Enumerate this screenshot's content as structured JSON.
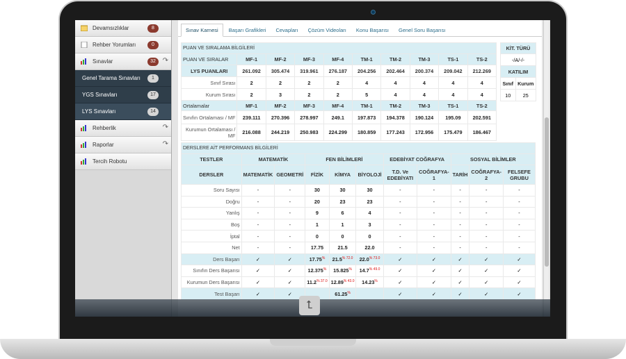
{
  "sidebar": {
    "items": [
      {
        "label": "Devamsızlıklar",
        "badge": "8"
      },
      {
        "label": "Rehber Yorumları",
        "badge": "0"
      },
      {
        "label": "Sınavlar",
        "badge": "32"
      }
    ],
    "subitems": [
      {
        "label": "Genel Tarama Sınavları",
        "badge": "1"
      },
      {
        "label": "YGS Sınavları",
        "badge": "17"
      },
      {
        "label": "LYS Sınavları",
        "badge": "14"
      }
    ],
    "links": [
      {
        "label": "Rehberlik"
      },
      {
        "label": "Raporlar"
      },
      {
        "label": "Tercih Robotu"
      }
    ]
  },
  "tabs": [
    "Sınav Karnesi",
    "Başarı Grafikleri",
    "Cevapları",
    "Çözüm Videoları",
    "Konu Başarısı",
    "Genel Soru Başarısı"
  ],
  "puan": {
    "section_title": "PUAN VE SIRALAMA BİLGİLERİ",
    "header_label": "PUAN VE SIRALAR",
    "columns": [
      "MF-1",
      "MF-2",
      "MF-3",
      "MF-4",
      "TM-1",
      "TM-2",
      "TM-3",
      "TS-1",
      "TS-2"
    ],
    "rows": [
      {
        "label": "LYS PUANLARI",
        "values": [
          "261.092",
          "305.474",
          "319.961",
          "276.187",
          "204.256",
          "202.464",
          "200.374",
          "209.042",
          "212.269"
        ]
      },
      {
        "label": "Sınıf Sırası",
        "values": [
          "2",
          "2",
          "2",
          "2",
          "4",
          "4",
          "4",
          "4",
          "4"
        ]
      },
      {
        "label": "Kurum Sırası",
        "values": [
          "2",
          "3",
          "2",
          "2",
          "5",
          "4",
          "4",
          "4",
          "4"
        ]
      }
    ],
    "avg_label": "Ortalamalar",
    "avg_rows": [
      {
        "label": "Sınıfın Ortalaması / MF",
        "values": [
          "239.111",
          "270.396",
          "278.997",
          "249.1",
          "197.873",
          "194.378",
          "190.124",
          "195.09",
          "202.591"
        ]
      },
      {
        "label": "Kurumun Ortalaması / MF",
        "values": [
          "216.088",
          "244.219",
          "250.983",
          "224.299",
          "180.859",
          "177.243",
          "172.956",
          "175.479",
          "186.467"
        ]
      }
    ]
  },
  "kit": {
    "title": "KİT. TÜRÜ",
    "value": "-/A/-/-",
    "katilim": "KATILIM",
    "sinif_label": "Sınıf",
    "kurum_label": "Kurum",
    "sinif": "10",
    "kurum": "25"
  },
  "ders": {
    "section_title": "DERSLERE AİT PERFORMANS BİLGİLERİ",
    "groups": [
      "TESTLER",
      "MATEMATİK",
      "FEN BİLİMLERİ",
      "EDEBİYAT COĞRAFYA",
      "SOSYAL BİLİMLER"
    ],
    "subjects_label": "DERSLER",
    "subjects": [
      "MATEMATİK",
      "GEOMETRİ",
      "FİZİK",
      "KİMYA",
      "BİYOLOJİ",
      "T.D. Ve EDEBİYATI",
      "COĞRAFYA-1",
      "TARİH",
      "COĞRAFYA-2",
      "FELSEFE GRUBU"
    ],
    "rows": [
      {
        "label": "Soru Sayısı",
        "values": [
          "-",
          "-",
          "30",
          "30",
          "30",
          "-",
          "-",
          "-",
          "-",
          "-"
        ]
      },
      {
        "label": "Doğru",
        "values": [
          "-",
          "-",
          "20",
          "23",
          "23",
          "-",
          "-",
          "-",
          "-",
          "-"
        ]
      },
      {
        "label": "Yanlış",
        "values": [
          "-",
          "-",
          "9",
          "6",
          "4",
          "-",
          "-",
          "-",
          "-",
          "-"
        ]
      },
      {
        "label": "Boş",
        "values": [
          "-",
          "-",
          "1",
          "1",
          "3",
          "-",
          "-",
          "-",
          "-",
          "-"
        ]
      },
      {
        "label": "İptal",
        "values": [
          "-",
          "-",
          "0",
          "0",
          "0",
          "-",
          "-",
          "-",
          "-",
          "-"
        ]
      },
      {
        "label": "Net",
        "values": [
          "-",
          "-",
          "17.75",
          "21.5",
          "22.0",
          "-",
          "-",
          "-",
          "-",
          "-"
        ]
      },
      {
        "label": "Ders Başarı",
        "values": [
          "✓",
          "✓",
          "17.75",
          "21.5",
          "22.0",
          "✓",
          "✓",
          "✓",
          "✓",
          "✓"
        ],
        "sup": [
          "",
          "",
          "%",
          "% 72.0",
          "% 73.0",
          "",
          "",
          "",
          "",
          ""
        ]
      },
      {
        "label": "Sınıfın Ders Başarısı",
        "values": [
          "✓",
          "✓",
          "12.375",
          "15.825",
          "14.7",
          "✓",
          "✓",
          "✓",
          "✓",
          "✓"
        ],
        "sup": [
          "",
          "",
          "%",
          "%",
          "% 49.0",
          "",
          "",
          "",
          "",
          ""
        ]
      },
      {
        "label": "Kurumun Ders Başarısı",
        "values": [
          "✓",
          "✓",
          "11.2",
          "12.89",
          "14.23",
          "✓",
          "✓",
          "✓",
          "✓",
          "✓"
        ],
        "sup": [
          "",
          "",
          "% 37.0",
          "% 43.0",
          "%",
          "",
          "",
          "",
          "",
          ""
        ]
      },
      {
        "label": "Test Başarı",
        "values": [
          "✓",
          "✓",
          "",
          "61.25",
          "",
          "✓",
          "✓",
          "✓",
          "✓",
          "✓"
        ],
        "sup": [
          "",
          "",
          "",
          "%",
          "",
          "",
          "",
          "",
          "",
          ""
        ]
      }
    ]
  }
}
